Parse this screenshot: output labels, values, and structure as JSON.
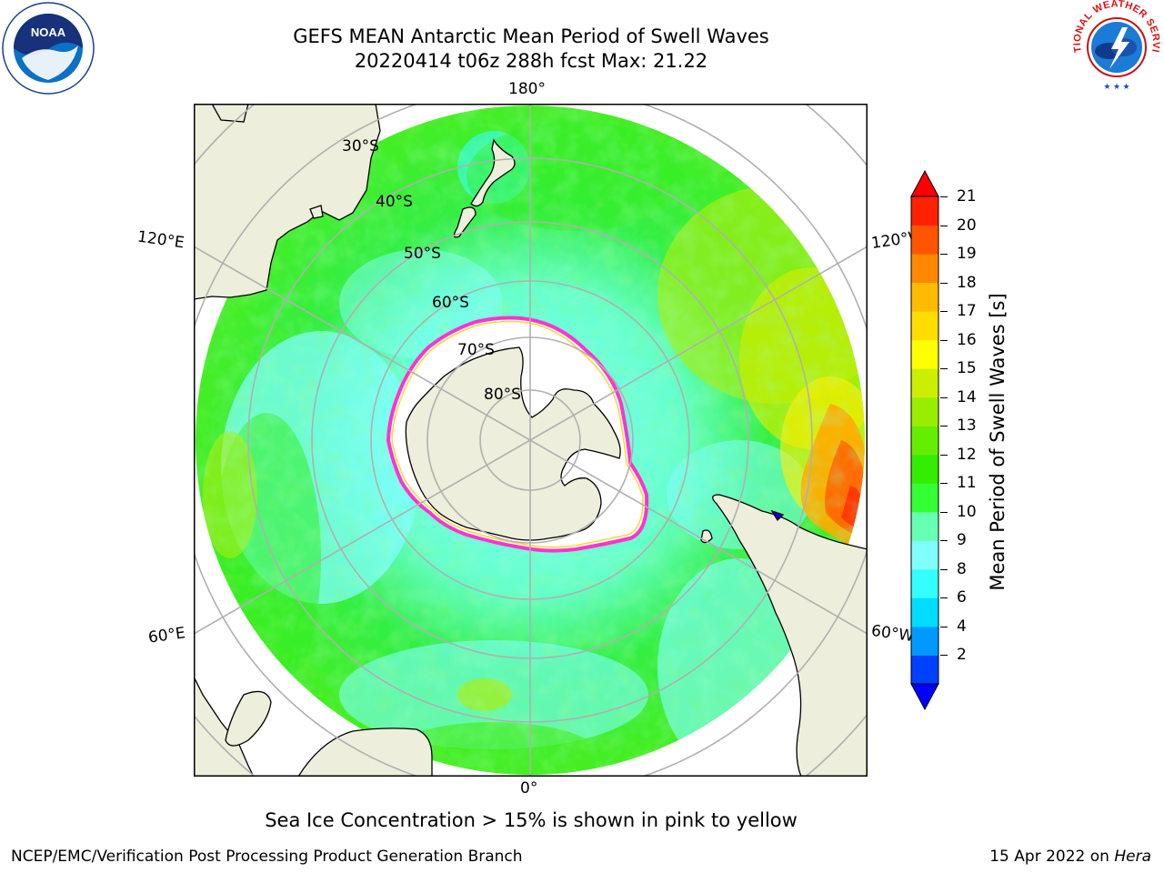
{
  "title": {
    "line1": "GEFS MEAN Antarctic Mean Period of Swell Waves",
    "line2": "20220414 t06z 288h fcst   Max: 21.22"
  },
  "map": {
    "projection": "south-polar-stereographic",
    "longitude_labels": {
      "top": "180°",
      "bottom": "0°",
      "upper_left": "120°E",
      "upper_right": "120°W",
      "lower_left": "60°E",
      "lower_right": "60°W"
    },
    "latitude_labels": [
      "30°S",
      "40°S",
      "50°S",
      "60°S",
      "70°S",
      "80°S"
    ],
    "colors": {
      "land": "#eeeedc",
      "sea_ice_edge_pink": "#ff33cc",
      "sea_ice_edge_yellow": "#ffcc00",
      "grid": "#b0b0b0"
    }
  },
  "colorbar": {
    "label": "Mean Period of Swell Waves [s]",
    "ticks": [
      "21",
      "20",
      "19",
      "18",
      "17",
      "16",
      "15",
      "14",
      "13",
      "12",
      "11",
      "10",
      "9",
      "8",
      "6",
      "4",
      "2"
    ],
    "colors_bottom_to_top": [
      "#0040ff",
      "#0099ff",
      "#00ddff",
      "#33ffff",
      "#80ffff",
      "#66ffb3",
      "#33ff33",
      "#33ee00",
      "#66ee00",
      "#99ee00",
      "#ccee00",
      "#ffff00",
      "#ffdd00",
      "#ffbb00",
      "#ff8800",
      "#ff5500",
      "#ff2200"
    ],
    "under_color": "#0000ff",
    "over_color": "#ff0000"
  },
  "note": "Sea Ice Concentration > 15% is shown in pink to yellow",
  "footer": {
    "left": "NCEP/EMC/Verification Post Processing Product Generation Branch",
    "date": "15 Apr 2022 on ",
    "machine": "Hera"
  },
  "logos": {
    "noaa_text": "NOAA",
    "nws_text": "NATIONAL WEATHER SERVICE"
  }
}
